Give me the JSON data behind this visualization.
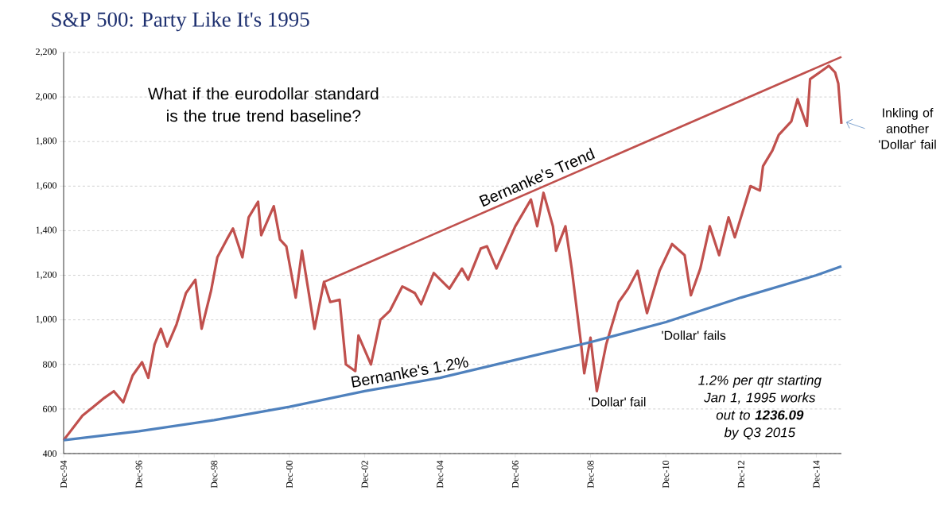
{
  "chart_data": {
    "type": "line",
    "title": "S&P 500: Party Like It's 1995",
    "xlim": [
      "1994-12",
      "2015-08"
    ],
    "ylim": [
      400,
      2200
    ],
    "xticks": [
      {
        "value": "1994-12",
        "label": "Dec-94"
      },
      {
        "value": "1996-12",
        "label": "Dec-96"
      },
      {
        "value": "1998-12",
        "label": "Dec-98"
      },
      {
        "value": "2000-12",
        "label": "Dec-00"
      },
      {
        "value": "2002-12",
        "label": "Dec-02"
      },
      {
        "value": "2004-12",
        "label": "Dec-04"
      },
      {
        "value": "2006-12",
        "label": "Dec-06"
      },
      {
        "value": "2008-12",
        "label": "Dec-08"
      },
      {
        "value": "2010-12",
        "label": "Dec-10"
      },
      {
        "value": "2012-12",
        "label": "Dec-12"
      },
      {
        "value": "2014-12",
        "label": "Dec-14"
      }
    ],
    "yticks": [
      400,
      600,
      800,
      {
        "value": 1000,
        "label": "1,000"
      },
      {
        "value": 1200,
        "label": "1,200"
      },
      {
        "value": 1400,
        "label": "1,400"
      },
      {
        "value": 1600,
        "label": "1,600"
      },
      {
        "value": 1800,
        "label": "1,800"
      },
      {
        "value": 2000,
        "label": "2,000"
      },
      {
        "value": 2200,
        "label": "2,200"
      }
    ],
    "grid": "y",
    "series": [
      {
        "color": "#c0504d",
        "x": [
          "1994-12",
          "1995-06",
          "1996-01",
          "1996-04",
          "1996-07",
          "1996-10",
          "1997-01",
          "1997-03",
          "1997-05",
          "1997-07",
          "1997-09",
          "1997-12",
          "1998-03",
          "1998-06",
          "1998-08",
          "1998-11",
          "1999-01",
          "1999-04",
          "1999-06",
          "1999-09",
          "1999-11",
          "2000-02",
          "2000-03",
          "2000-07",
          "2000-09",
          "2000-11",
          "2001-02",
          "2001-04",
          "2001-08",
          "2001-11",
          "2002-01",
          "2002-04",
          "2002-06",
          "2002-09",
          "2002-10",
          "2003-02",
          "2003-05",
          "2003-08",
          "2003-12",
          "2004-04",
          "2004-06",
          "2004-10",
          "2005-03",
          "2005-07",
          "2005-09",
          "2006-01",
          "2006-03",
          "2006-06",
          "2006-12",
          "2007-05",
          "2007-07",
          "2007-09",
          "2007-12",
          "2008-01",
          "2008-04",
          "2008-06",
          "2008-09",
          "2008-10",
          "2008-12",
          "2009-02",
          "2009-05",
          "2009-09",
          "2009-12",
          "2010-03",
          "2010-06",
          "2010-10",
          "2011-02",
          "2011-06",
          "2011-08",
          "2011-11",
          "2012-02",
          "2012-05",
          "2012-08",
          "2012-10",
          "2013-03",
          "2013-06",
          "2013-07",
          "2013-10",
          "2013-12",
          "2014-04",
          "2014-06",
          "2014-09",
          "2014-10",
          "2015-02",
          "2015-04",
          "2015-06",
          "2015-07",
          "2015-08"
        ],
        "values": [
          460,
          570,
          650,
          680,
          630,
          750,
          810,
          740,
          890,
          960,
          880,
          980,
          1120,
          1180,
          960,
          1130,
          1280,
          1360,
          1410,
          1280,
          1460,
          1530,
          1380,
          1510,
          1360,
          1330,
          1100,
          1310,
          960,
          1170,
          1080,
          1090,
          800,
          770,
          930,
          800,
          1000,
          1040,
          1150,
          1120,
          1070,
          1210,
          1140,
          1230,
          1180,
          1320,
          1330,
          1230,
          1420,
          1540,
          1420,
          1570,
          1420,
          1310,
          1420,
          1230,
          890,
          760,
          920,
          680,
          890,
          1080,
          1140,
          1220,
          1030,
          1220,
          1340,
          1290,
          1110,
          1230,
          1420,
          1290,
          1460,
          1370,
          1600,
          1580,
          1690,
          1760,
          1830,
          1890,
          1990,
          1870,
          2080,
          2120,
          2140,
          2110,
          2060,
          1880
        ]
      },
      {
        "name": "Bernanke's 1.2%",
        "color": "#4f81bd",
        "x": [
          "1994-12",
          "1996-12",
          "1998-12",
          "2000-12",
          "2002-12",
          "2004-12",
          "2006-12",
          "2008-12",
          "2010-12",
          "2012-12",
          "2014-12",
          "2015-08"
        ],
        "values": [
          460,
          500,
          550,
          610,
          680,
          740,
          820,
          900,
          990,
          1100,
          1200,
          1240
        ]
      },
      {
        "name": "Bernanke's Trend",
        "color": "#c0504d",
        "x": [
          "2001-11",
          "2015-08"
        ],
        "values": [
          1170,
          2180
        ]
      }
    ],
    "annotations": [
      "What if the eurodollar standard is the true trend baseline?",
      {
        "text": "'Dollar' fail",
        "x": "2009-02",
        "y": 680
      },
      "'Dollar' fails",
      {
        "text": "Inkling of another 'Dollar' fail",
        "x": "2015-08",
        "y": 1880
      },
      "1.2% per qtr starting Jan 1, 1995  works out to **1236.09** by Q3 2015"
    ]
  }
}
